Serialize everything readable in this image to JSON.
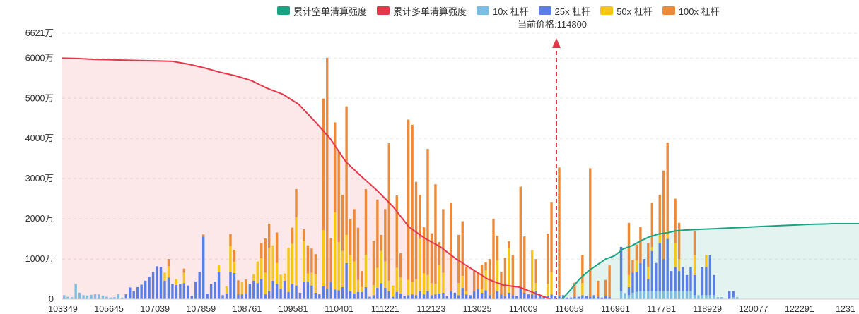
{
  "legend": [
    {
      "label": "累计空单清算强度",
      "color": "#1aa383"
    },
    {
      "label": "累计多单清算强度",
      "color": "#e5374a"
    },
    {
      "label": "10x 杠杆",
      "color": "#7dbde3"
    },
    {
      "label": "25x 杠杆",
      "color": "#5b7ee5"
    },
    {
      "label": "50x 杠杆",
      "color": "#f5c518"
    },
    {
      "label": "100x 杠杆",
      "color": "#eb8a3a"
    }
  ],
  "current_price": {
    "label": "当前价格:114800"
  },
  "chart_data": {
    "type": "bar",
    "y_ticks": [
      "0",
      "1000万",
      "2000万",
      "3000万",
      "4000万",
      "5000万",
      "6000万",
      "6621万"
    ],
    "y_tick_values": [
      0,
      1000,
      2000,
      3000,
      4000,
      5000,
      6000,
      6621
    ],
    "ylim": [
      0,
      6621
    ],
    "y_unit": "万",
    "x_ticks": [
      "103349",
      "105645",
      "107039",
      "107859",
      "108761",
      "109581",
      "110401",
      "111221",
      "112123",
      "113025",
      "114009",
      "116059",
      "116961",
      "117781",
      "118929",
      "120077",
      "122291",
      "1231"
    ],
    "bars": [
      [
        100,
        0,
        0,
        0
      ],
      [
        60,
        0,
        0,
        0
      ],
      [
        50,
        0,
        0,
        0
      ],
      [
        380,
        0,
        0,
        0
      ],
      [
        160,
        0,
        0,
        0
      ],
      [
        100,
        0,
        0,
        0
      ],
      [
        90,
        0,
        0,
        0
      ],
      [
        110,
        0,
        0,
        0
      ],
      [
        120,
        0,
        0,
        0
      ],
      [
        120,
        0,
        0,
        0
      ],
      [
        90,
        0,
        0,
        0
      ],
      [
        60,
        0,
        0,
        0
      ],
      [
        40,
        0,
        0,
        0
      ],
      [
        50,
        0,
        0,
        0
      ],
      [
        120,
        0,
        0,
        0
      ],
      [
        40,
        0,
        0,
        0
      ],
      [
        20,
        100,
        0,
        0
      ],
      [
        30,
        260,
        0,
        0
      ],
      [
        20,
        180,
        0,
        0
      ],
      [
        0,
        300,
        0,
        0
      ],
      [
        0,
        360,
        0,
        0
      ],
      [
        0,
        460,
        0,
        0
      ],
      [
        0,
        560,
        0,
        0
      ],
      [
        0,
        680,
        0,
        0
      ],
      [
        0,
        820,
        0,
        0
      ],
      [
        0,
        800,
        0,
        0
      ],
      [
        0,
        460,
        200,
        0
      ],
      [
        0,
        540,
        280,
        180
      ],
      [
        0,
        380,
        0,
        0
      ],
      [
        0,
        350,
        150,
        0
      ],
      [
        0,
        380,
        0,
        0
      ],
      [
        0,
        400,
        260,
        100
      ],
      [
        0,
        340,
        0,
        0
      ],
      [
        0,
        80,
        0,
        0
      ],
      [
        0,
        440,
        0,
        0
      ],
      [
        0,
        680,
        0,
        0
      ],
      [
        0,
        1560,
        0,
        50
      ],
      [
        0,
        140,
        0,
        0
      ],
      [
        0,
        380,
        0,
        0
      ],
      [
        0,
        430,
        0,
        0
      ],
      [
        0,
        680,
        160,
        0
      ],
      [
        0,
        100,
        0,
        0
      ],
      [
        0,
        140,
        180,
        0
      ],
      [
        0,
        680,
        640,
        300
      ],
      [
        0,
        650,
        280,
        300
      ],
      [
        0,
        120,
        0,
        350
      ],
      [
        0,
        120,
        300,
        0
      ],
      [
        0,
        140,
        0,
        350
      ],
      [
        0,
        380,
        0,
        0
      ],
      [
        0,
        460,
        160,
        0
      ],
      [
        0,
        400,
        540,
        0
      ],
      [
        0,
        500,
        520,
        380
      ],
      [
        0,
        120,
        540,
        850
      ],
      [
        0,
        200,
        1080,
        600
      ],
      [
        0,
        460,
        880,
        0
      ],
      [
        0,
        380,
        520,
        760
      ],
      [
        0,
        260,
        350,
        0
      ],
      [
        0,
        460,
        180,
        0
      ],
      [
        0,
        180,
        1100,
        0
      ],
      [
        0,
        380,
        1000,
        400
      ],
      [
        0,
        340,
        1700,
        700
      ],
      [
        0,
        160,
        0,
        0
      ],
      [
        0,
        440,
        1000,
        300
      ],
      [
        0,
        440,
        200,
        700
      ],
      [
        0,
        340,
        320,
        600
      ],
      [
        0,
        160,
        460,
        500
      ],
      [
        0,
        120,
        0,
        0
      ],
      [
        0,
        320,
        1400,
        3270
      ],
      [
        0,
        260,
        0,
        5750
      ],
      [
        0,
        420,
        0,
        1100
      ],
      [
        0,
        240,
        1920,
        2240
      ],
      [
        0,
        220,
        1200,
        2260
      ],
      [
        0,
        300,
        900,
        1400
      ],
      [
        0,
        900,
        700,
        3200
      ],
      [
        0,
        200,
        900,
        900
      ],
      [
        0,
        140,
        800,
        1300
      ],
      [
        0,
        180,
        300,
        1300
      ],
      [
        0,
        180,
        120,
        400
      ],
      [
        0,
        300,
        800,
        1640
      ],
      [
        0,
        60,
        0,
        0
      ],
      [
        0,
        100,
        250,
        1100
      ],
      [
        0,
        280,
        500,
        1700
      ],
      [
        0,
        400,
        800,
        400
      ],
      [
        0,
        280,
        660,
        1300
      ],
      [
        0,
        200,
        260,
        3420
      ],
      [
        0,
        60,
        280,
        0
      ],
      [
        0,
        180,
        600,
        1800
      ],
      [
        0,
        140,
        400,
        600
      ],
      [
        0,
        80,
        0,
        0
      ],
      [
        0,
        100,
        380,
        3990
      ],
      [
        0,
        120,
        300,
        3920
      ],
      [
        0,
        100,
        400,
        2420
      ],
      [
        0,
        200,
        1300,
        1100
      ],
      [
        0,
        120,
        520,
        1150
      ],
      [
        0,
        200,
        400,
        3140
      ],
      [
        0,
        100,
        300,
        1240
      ],
      [
        0,
        120,
        260,
        2480
      ],
      [
        0,
        140,
        700,
        580
      ],
      [
        0,
        160,
        500,
        1580
      ],
      [
        0,
        80,
        0,
        0
      ],
      [
        0,
        200,
        0,
        2200
      ],
      [
        0,
        160,
        0,
        0
      ],
      [
        0,
        100,
        300,
        1200
      ],
      [
        0,
        280,
        300,
        1360
      ],
      [
        0,
        120,
        80,
        600
      ],
      [
        0,
        100,
        0,
        0
      ],
      [
        0,
        200,
        0,
        500
      ],
      [
        0,
        260,
        0,
        400
      ],
      [
        0,
        160,
        100,
        600
      ],
      [
        0,
        220,
        500,
        200
      ],
      [
        0,
        100,
        0,
        900
      ],
      [
        0,
        0,
        0,
        2000
      ],
      [
        0,
        200,
        760,
        620
      ],
      [
        0,
        120,
        0,
        560
      ],
      [
        0,
        80,
        0,
        950
      ],
      [
        0,
        160,
        1100,
        180
      ],
      [
        0,
        100,
        0,
        1000
      ],
      [
        0,
        80,
        0,
        0
      ],
      [
        0,
        300,
        0,
        2500
      ],
      [
        0,
        160,
        0,
        1400
      ],
      [
        0,
        120,
        0,
        0
      ],
      [
        0,
        120,
        1100,
        0
      ],
      [
        0,
        200,
        200,
        600
      ],
      [
        0,
        80,
        0,
        0
      ],
      [
        0,
        60,
        0,
        0
      ],
      [
        0,
        80,
        300,
        1250
      ],
      [
        0,
        120,
        550,
        1750
      ],
      [
        0,
        80,
        0,
        0
      ],
      [
        0,
        80,
        0,
        3200
      ],
      [
        0,
        100,
        0,
        0
      ],
      [
        0,
        40,
        0,
        0
      ],
      [
        0,
        40,
        0,
        0
      ],
      [
        0,
        60,
        0,
        350
      ],
      [
        0,
        60,
        0,
        0
      ],
      [
        0,
        100,
        300,
        700
      ],
      [
        0,
        80,
        0,
        0
      ],
      [
        0,
        60,
        0,
        3200
      ],
      [
        0,
        100,
        0,
        0
      ],
      [
        0,
        60,
        0,
        400
      ],
      [
        0,
        40,
        0,
        0
      ],
      [
        0,
        80,
        0,
        400
      ],
      [
        0,
        60,
        0,
        780
      ],
      [
        0,
        0,
        0,
        0
      ],
      [
        0,
        0,
        0,
        0
      ],
      [
        200,
        1100,
        0,
        0
      ],
      [
        150,
        0,
        0,
        0
      ],
      [
        100,
        200,
        300,
        1300
      ],
      [
        160,
        500,
        0,
        320
      ],
      [
        180,
        500,
        280,
        400
      ],
      [
        200,
        700,
        0,
        900
      ],
      [
        200,
        800,
        0,
        0
      ],
      [
        200,
        300,
        300,
        600
      ],
      [
        200,
        1000,
        100,
        1100
      ],
      [
        200,
        700,
        0,
        0
      ],
      [
        200,
        1200,
        200,
        1000
      ],
      [
        200,
        800,
        0,
        2200
      ],
      [
        200,
        1300,
        200,
        2200
      ],
      [
        200,
        500,
        0,
        0
      ],
      [
        200,
        600,
        600,
        1100
      ],
      [
        200,
        500,
        300,
        900
      ],
      [
        200,
        600,
        0,
        0
      ],
      [
        200,
        400,
        0,
        0
      ],
      [
        200,
        600,
        0,
        0
      ],
      [
        100,
        500,
        500,
        600
      ],
      [
        100,
        0,
        0,
        0
      ],
      [
        100,
        700,
        0,
        0
      ],
      [
        100,
        700,
        300,
        0
      ],
      [
        100,
        1000,
        0,
        0
      ],
      [
        100,
        500,
        0,
        0
      ],
      [
        50,
        0,
        0,
        0
      ],
      [
        50,
        0,
        0,
        0
      ],
      [
        0,
        0,
        0,
        0
      ],
      [
        0,
        200,
        0,
        0
      ],
      [
        50,
        150,
        0,
        0
      ],
      [
        50,
        0,
        0,
        0
      ],
      [
        0,
        0,
        0,
        0
      ],
      [
        0,
        0,
        0,
        0
      ],
      [
        0,
        0,
        0,
        0
      ],
      [
        0,
        0,
        0,
        0
      ],
      [
        0,
        0,
        0,
        0
      ],
      [
        0,
        0,
        0,
        0
      ],
      [
        0,
        0,
        0,
        0
      ],
      [
        0,
        0,
        0,
        0
      ],
      [
        0,
        0,
        0,
        0
      ],
      [
        0,
        0,
        0,
        0
      ],
      [
        0,
        0,
        0,
        0
      ],
      [
        0,
        0,
        0,
        0
      ],
      [
        0,
        0,
        0,
        0
      ],
      [
        0,
        0,
        0,
        0
      ],
      [
        0,
        0,
        0,
        0
      ],
      [
        0,
        0,
        0,
        0
      ],
      [
        0,
        0,
        0,
        0
      ],
      [
        0,
        0,
        0,
        0
      ],
      [
        0,
        0,
        0,
        0
      ],
      [
        0,
        0,
        0,
        0
      ],
      [
        0,
        0,
        0,
        0
      ],
      [
        0,
        0,
        0,
        0
      ],
      [
        0,
        0,
        0,
        0
      ],
      [
        0,
        0,
        0,
        0
      ],
      [
        0,
        0,
        0,
        0
      ],
      [
        0,
        0,
        0,
        0
      ],
      [
        0,
        0,
        0,
        0
      ],
      [
        0,
        0,
        0,
        0
      ],
      [
        0,
        0,
        0,
        0
      ],
      [
        0,
        0,
        0,
        0
      ],
      [
        0,
        0,
        0,
        0
      ]
    ],
    "long_curve": [
      6000,
      5990,
      5970,
      5960,
      5950,
      5940,
      5930,
      5920,
      5850,
      5760,
      5650,
      5560,
      5440,
      5250,
      5100,
      4850,
      4440,
      4000,
      3420,
      3050,
      2700,
      2300,
      1800,
      1520,
      1300,
      1000,
      750,
      500,
      350,
      300,
      150,
      0
    ],
    "short_curve": [
      0,
      240,
      500,
      700,
      850,
      1000,
      1080,
      1250,
      1330,
      1450,
      1550,
      1620,
      1650,
      1700,
      1720,
      1730,
      1740,
      1750,
      1760,
      1770,
      1780,
      1790,
      1800,
      1810,
      1820,
      1830,
      1840,
      1850,
      1860,
      1865,
      1870,
      1880,
      1880,
      1880,
      1880
    ]
  }
}
